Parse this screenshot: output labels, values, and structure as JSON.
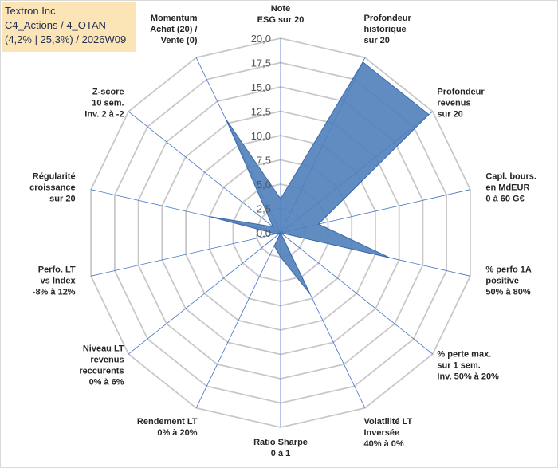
{
  "title": {
    "company": "Textron Inc",
    "portfolio": "C4_Actions / 4_OTAN",
    "perf": "(4,2% | 25,3%) / 2026W09"
  },
  "colors": {
    "fill": "#4f7fbb",
    "stroke": "#3c6aa8",
    "grid": "#c8c8c8",
    "spoke": "#4472c4",
    "title_bg": "#fbe5b6"
  },
  "chart_data": {
    "type": "radar",
    "rmax": 20,
    "tick_step": 2.5,
    "tick_labels": [
      "0,0",
      "2,5",
      "5,0",
      "7,5",
      "10,0",
      "12,5",
      "15,0",
      "17,5",
      "20,0"
    ],
    "axes": [
      {
        "label": [
          "Note",
          "ESG sur 20"
        ],
        "value": 3.5
      },
      {
        "label": [
          "Profondeur",
          "historique",
          "sur 20"
        ],
        "value": 19.5
      },
      {
        "label": [
          "Profondeur",
          "revenus",
          "sur 20"
        ],
        "value": 19.5
      },
      {
        "label": [
          "Capl. bours.",
          "en MdEUR",
          "0 à 60 G€"
        ],
        "value": 4.0
      },
      {
        "label": [
          "% perfo 1A",
          "positive",
          "50% à 80%"
        ],
        "value": 11.5
      },
      {
        "label": [
          "% perte max.",
          "sur 1 sem.",
          "Inv. 50% à 20%"
        ],
        "value": 0.0
      },
      {
        "label": [
          "Volatilité LT",
          "Inversée",
          "40% à 0%"
        ],
        "value": 7.0
      },
      {
        "label": [
          "Ratio Sharpe",
          "0 à 1"
        ],
        "value": 2.5
      },
      {
        "label": [
          "Rendement LT",
          "0% à 20%"
        ],
        "value": 1.5
      },
      {
        "label": [
          "Niveau LT",
          "revenus",
          "reccurents",
          "0% à 6%"
        ],
        "value": 0.0
      },
      {
        "label": [
          "Perfo. LT",
          "vs Index",
          "-8% à 12%"
        ],
        "value": 0.5
      },
      {
        "label": [
          "Régularité",
          "croissance",
          "sur 20"
        ],
        "value": 7.5
      },
      {
        "label": [
          "Z-score",
          "10 sem.",
          "Inv. 2 à -2"
        ],
        "value": 1.0
      },
      {
        "label": [
          "Momentum",
          "Achat (20) /",
          "Vente (0)"
        ],
        "value": 13.0
      }
    ]
  }
}
